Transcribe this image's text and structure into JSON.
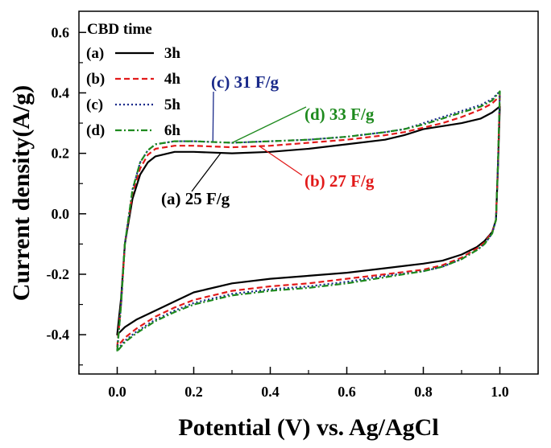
{
  "chart_data": {
    "type": "line",
    "title": "",
    "xlabel": "Potential (V) vs. Ag/AgCl",
    "ylabel": "Current density(A/g)",
    "xlim": [
      -0.1,
      1.1
    ],
    "ylim": [
      -0.53,
      0.67
    ],
    "x_ticks": [
      0.0,
      0.2,
      0.4,
      0.6,
      0.8,
      1.0
    ],
    "x_tick_labels": [
      "0.0",
      "0.2",
      "0.4",
      "0.6",
      "0.8",
      "1.0"
    ],
    "y_ticks": [
      -0.4,
      -0.2,
      0.0,
      0.2,
      0.4,
      0.6
    ],
    "y_tick_labels": [
      "-0.4",
      "-0.2",
      "0.0",
      "0.2",
      "0.4",
      "0.6"
    ],
    "grid": false,
    "legend": {
      "title": "CBD time",
      "placement": "top-left",
      "entries": [
        {
          "tag": "(a)",
          "label": "3h"
        },
        {
          "tag": "(b)",
          "label": "4h"
        },
        {
          "tag": "(c)",
          "label": "5h"
        },
        {
          "tag": "(d)",
          "label": "6h"
        }
      ]
    },
    "series": [
      {
        "name": "3h",
        "color": "#000000",
        "dash": "solid",
        "anodic": {
          "x": [
            0.0,
            0.01,
            0.02,
            0.04,
            0.06,
            0.08,
            0.1,
            0.15,
            0.2,
            0.3,
            0.4,
            0.5,
            0.6,
            0.7,
            0.75,
            0.8,
            0.85,
            0.9,
            0.95,
            0.98,
            1.0
          ],
          "y": [
            -0.4,
            -0.28,
            -0.1,
            0.05,
            0.13,
            0.17,
            0.19,
            0.205,
            0.205,
            0.2,
            0.205,
            0.215,
            0.23,
            0.245,
            0.26,
            0.28,
            0.29,
            0.3,
            0.315,
            0.335,
            0.355
          ]
        },
        "cathodic": {
          "x": [
            1.0,
            0.995,
            0.99,
            0.98,
            0.96,
            0.94,
            0.9,
            0.85,
            0.8,
            0.7,
            0.6,
            0.5,
            0.4,
            0.3,
            0.2,
            0.15,
            0.1,
            0.05,
            0.02,
            0.0
          ],
          "y": [
            0.355,
            0.15,
            -0.02,
            -0.06,
            -0.09,
            -0.11,
            -0.135,
            -0.155,
            -0.165,
            -0.18,
            -0.195,
            -0.205,
            -0.215,
            -0.23,
            -0.26,
            -0.29,
            -0.32,
            -0.35,
            -0.375,
            -0.4
          ]
        }
      },
      {
        "name": "4h",
        "color": "#e21a1a",
        "dash": "dashed",
        "anodic": {
          "x": [
            0.0,
            0.01,
            0.02,
            0.04,
            0.06,
            0.08,
            0.1,
            0.15,
            0.2,
            0.3,
            0.4,
            0.5,
            0.6,
            0.7,
            0.75,
            0.8,
            0.85,
            0.9,
            0.95,
            0.98,
            1.0
          ],
          "y": [
            -0.44,
            -0.3,
            -0.1,
            0.07,
            0.15,
            0.195,
            0.215,
            0.225,
            0.225,
            0.22,
            0.225,
            0.235,
            0.245,
            0.26,
            0.27,
            0.285,
            0.3,
            0.32,
            0.345,
            0.365,
            0.39
          ]
        },
        "cathodic": {
          "x": [
            1.0,
            0.995,
            0.99,
            0.98,
            0.96,
            0.94,
            0.9,
            0.85,
            0.8,
            0.7,
            0.6,
            0.5,
            0.4,
            0.3,
            0.2,
            0.15,
            0.1,
            0.05,
            0.02,
            0.0
          ],
          "y": [
            0.39,
            0.16,
            -0.02,
            -0.06,
            -0.095,
            -0.115,
            -0.145,
            -0.17,
            -0.185,
            -0.2,
            -0.215,
            -0.23,
            -0.24,
            -0.255,
            -0.285,
            -0.31,
            -0.34,
            -0.38,
            -0.41,
            -0.44
          ]
        }
      },
      {
        "name": "5h",
        "color": "#1a2a8a",
        "dash": "dotted",
        "anodic": {
          "x": [
            0.0,
            0.01,
            0.02,
            0.04,
            0.06,
            0.08,
            0.1,
            0.15,
            0.2,
            0.3,
            0.4,
            0.5,
            0.6,
            0.7,
            0.75,
            0.8,
            0.85,
            0.9,
            0.95,
            0.98,
            1.0
          ],
          "y": [
            -0.45,
            -0.3,
            -0.1,
            0.08,
            0.17,
            0.21,
            0.23,
            0.24,
            0.24,
            0.235,
            0.24,
            0.245,
            0.255,
            0.27,
            0.28,
            0.3,
            0.32,
            0.34,
            0.36,
            0.38,
            0.405
          ]
        },
        "cathodic": {
          "x": [
            1.0,
            0.995,
            0.99,
            0.98,
            0.96,
            0.94,
            0.9,
            0.85,
            0.8,
            0.7,
            0.6,
            0.5,
            0.4,
            0.3,
            0.2,
            0.15,
            0.1,
            0.05,
            0.02,
            0.0
          ],
          "y": [
            0.405,
            0.16,
            -0.02,
            -0.065,
            -0.1,
            -0.12,
            -0.15,
            -0.175,
            -0.19,
            -0.205,
            -0.225,
            -0.24,
            -0.25,
            -0.265,
            -0.295,
            -0.32,
            -0.35,
            -0.39,
            -0.42,
            -0.45
          ]
        }
      },
      {
        "name": "6h",
        "color": "#1e8a1e",
        "dash": "dashdot",
        "anodic": {
          "x": [
            0.0,
            0.01,
            0.02,
            0.04,
            0.06,
            0.08,
            0.1,
            0.15,
            0.2,
            0.3,
            0.4,
            0.5,
            0.6,
            0.7,
            0.75,
            0.8,
            0.85,
            0.9,
            0.95,
            0.98,
            1.0
          ],
          "y": [
            -0.455,
            -0.3,
            -0.1,
            0.08,
            0.17,
            0.21,
            0.23,
            0.24,
            0.24,
            0.235,
            0.24,
            0.245,
            0.255,
            0.27,
            0.28,
            0.295,
            0.315,
            0.335,
            0.355,
            0.375,
            0.405
          ]
        },
        "cathodic": {
          "x": [
            1.0,
            0.995,
            0.99,
            0.98,
            0.96,
            0.94,
            0.9,
            0.85,
            0.8,
            0.7,
            0.6,
            0.5,
            0.4,
            0.3,
            0.2,
            0.15,
            0.1,
            0.05,
            0.02,
            0.0
          ],
          "y": [
            0.405,
            0.16,
            -0.02,
            -0.065,
            -0.1,
            -0.12,
            -0.15,
            -0.175,
            -0.19,
            -0.21,
            -0.23,
            -0.245,
            -0.255,
            -0.27,
            -0.3,
            -0.325,
            -0.355,
            -0.395,
            -0.425,
            -0.455
          ]
        }
      }
    ],
    "annotations": [
      {
        "text": "(a) 25 F/g",
        "color": "#000000",
        "point_x": 0.27,
        "point_y": 0.2
      },
      {
        "text": "(b) 27 F/g",
        "color": "#e21a1a",
        "point_x": 0.37,
        "point_y": 0.225
      },
      {
        "text": "(c) 31 F/g",
        "color": "#1a2a8a",
        "point_x": 0.25,
        "point_y": 0.24
      },
      {
        "text": "(d) 33 F/g",
        "color": "#1e8a1e",
        "point_x": 0.3,
        "point_y": 0.235
      }
    ]
  }
}
